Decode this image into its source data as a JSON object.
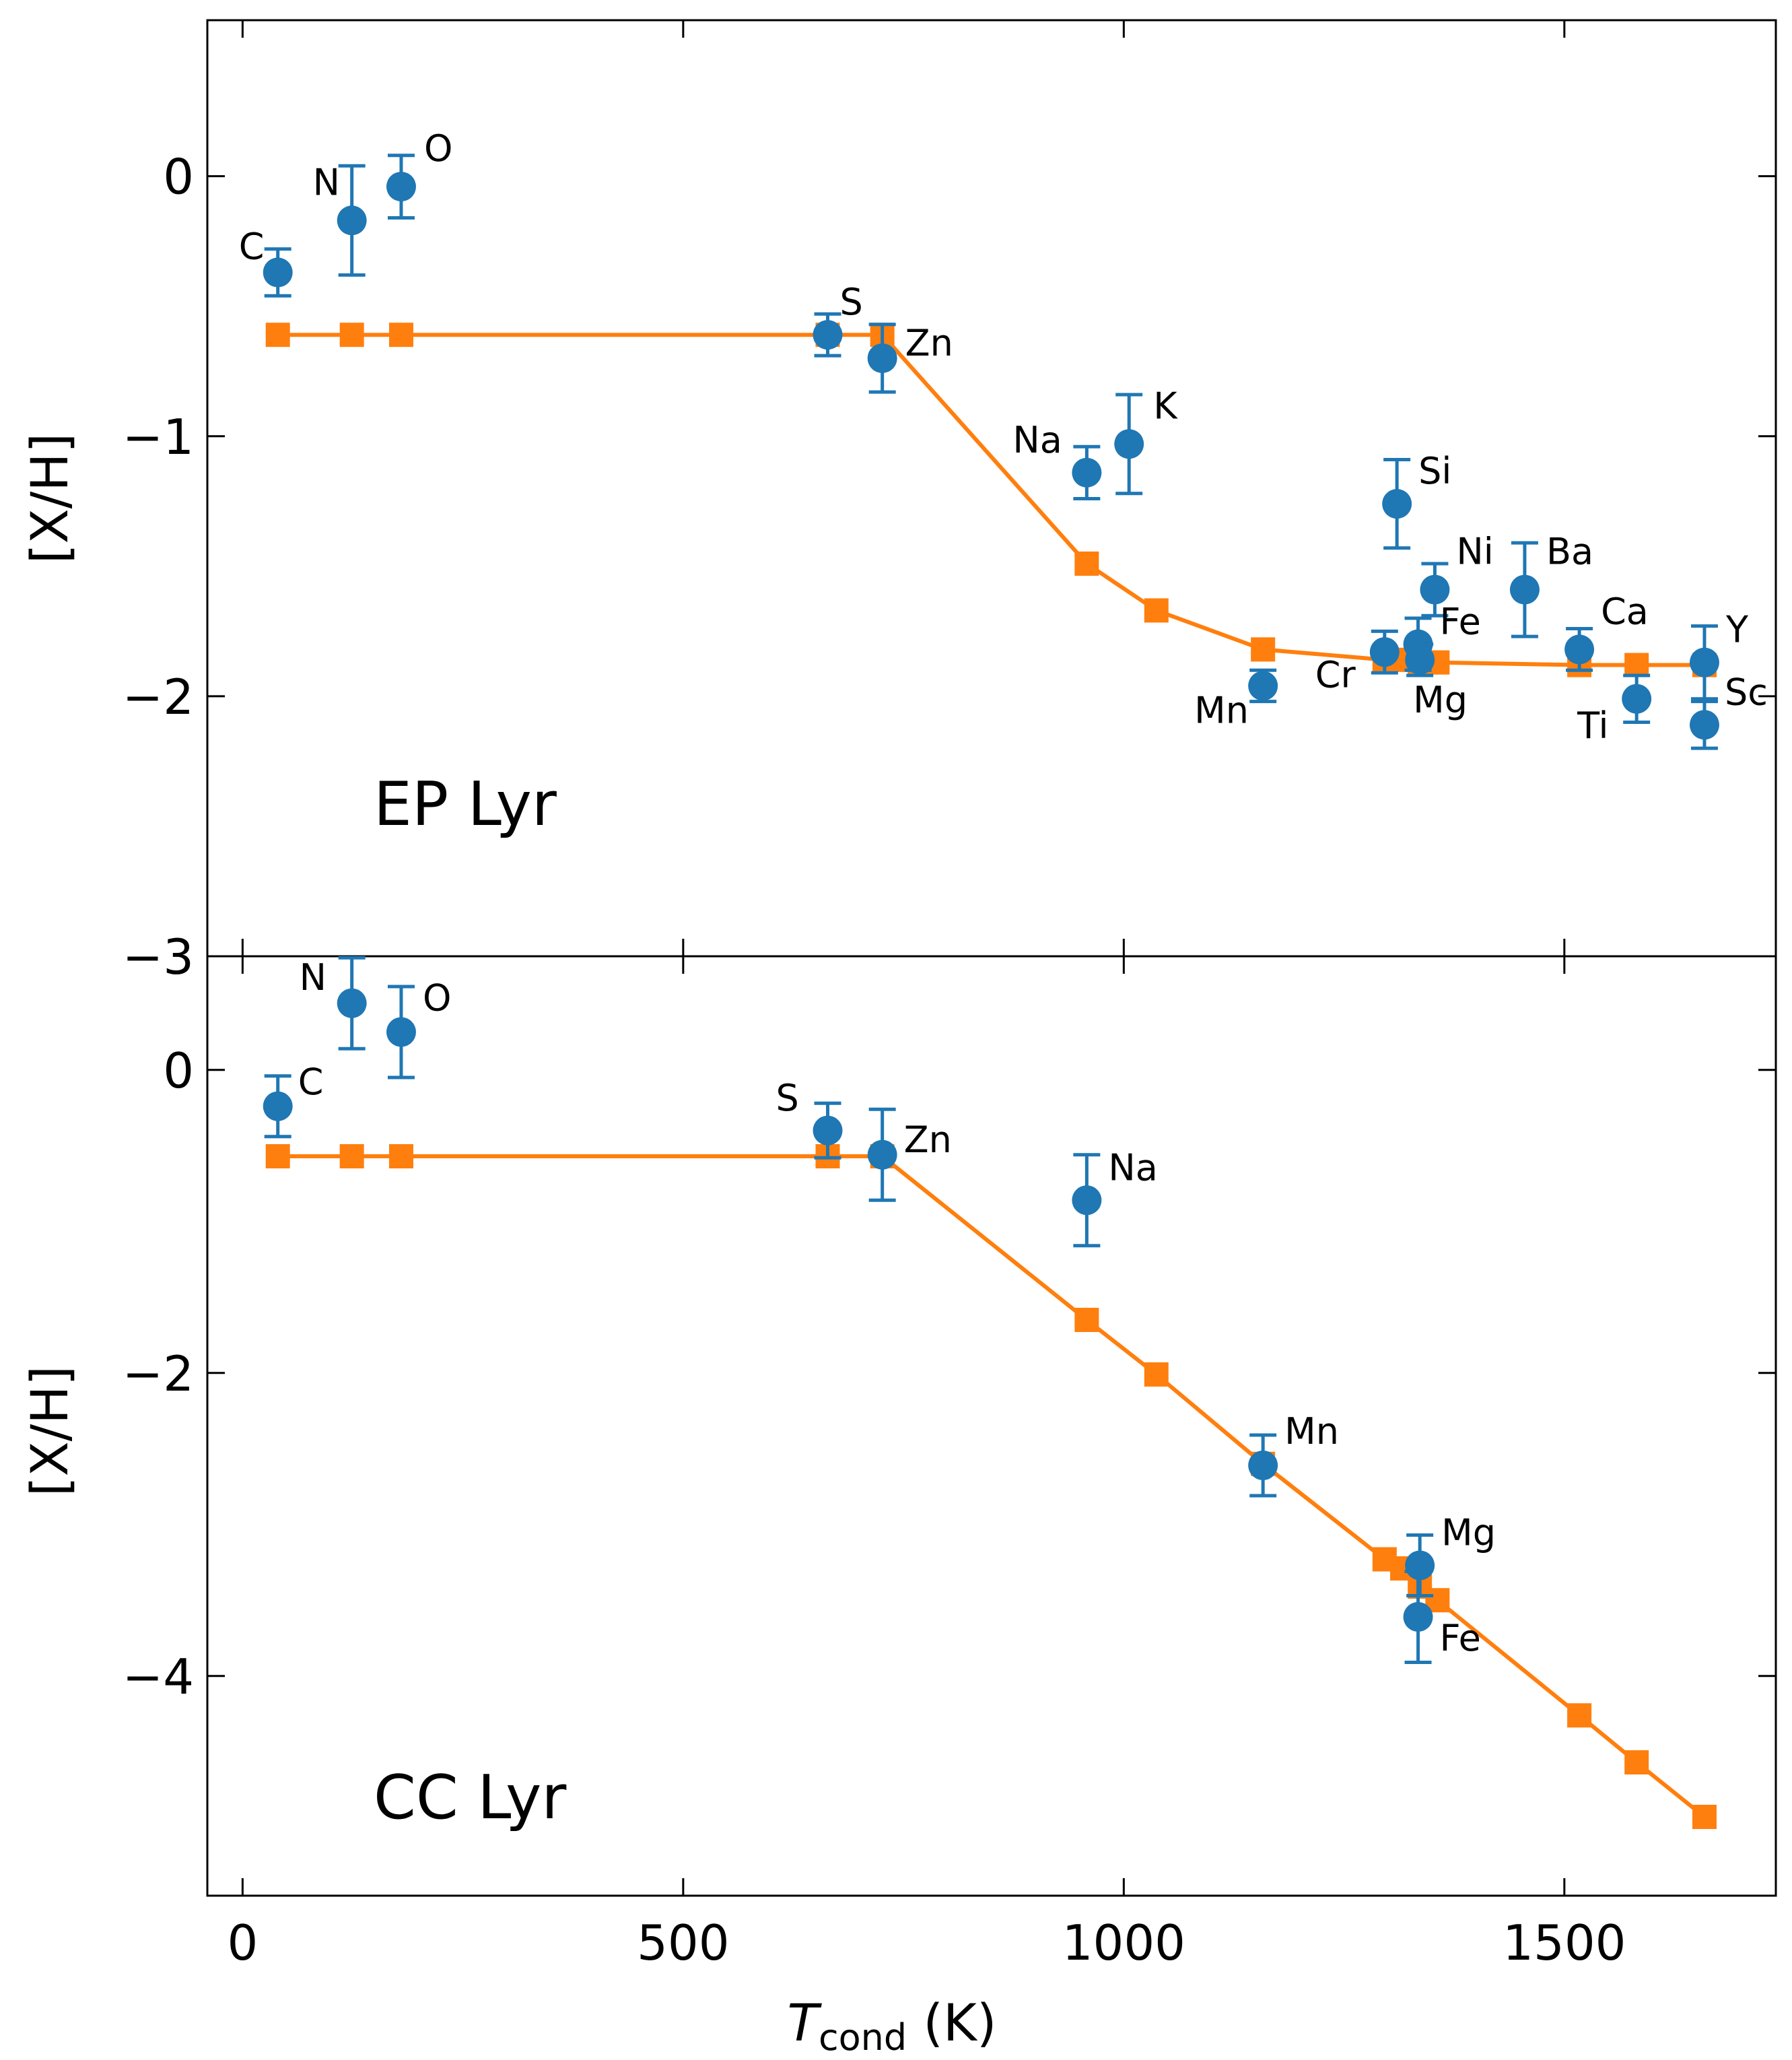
{
  "figure": {
    "xlabel_main": "T",
    "xlabel_sub": "cond",
    "xlabel_unit": " (K)"
  },
  "colors": {
    "observed": "#1f77b4",
    "model": "#ff7f0e",
    "axes": "#000000"
  },
  "chart_data": [
    {
      "type": "scatter",
      "title": "EP Lyr",
      "xlabel": "T_cond (K)",
      "ylabel": "[X/H]",
      "xlim": [
        -40,
        1740
      ],
      "ylim": [
        -3.0,
        0.6
      ],
      "xticks": [
        0,
        500,
        1000,
        1500
      ],
      "yticks": [
        0,
        -1,
        -2,
        -3
      ],
      "ytick_labels": [
        "0",
        "−1",
        "−2",
        "−3"
      ],
      "model": {
        "x": [
          40,
          124,
          180,
          664,
          726,
          958,
          1037,
          1158,
          1296,
          1316,
          1336,
          1356,
          1517,
          1582,
          1659
        ],
        "y": [
          -0.61,
          -0.61,
          -0.61,
          -0.61,
          -0.61,
          -1.49,
          -1.67,
          -1.82,
          -1.86,
          -1.86,
          -1.87,
          -1.87,
          -1.88,
          -1.88,
          -1.88
        ]
      },
      "observed": [
        {
          "el": "C",
          "x": 40,
          "y": -0.37,
          "err": 0.09
        },
        {
          "el": "N",
          "x": 124,
          "y": -0.17,
          "err": 0.21
        },
        {
          "el": "O",
          "x": 180,
          "y": -0.04,
          "err": 0.12
        },
        {
          "el": "S",
          "x": 664,
          "y": -0.61,
          "err": 0.08
        },
        {
          "el": "Zn",
          "x": 726,
          "y": -0.7,
          "err": 0.13
        },
        {
          "el": "Na",
          "x": 958,
          "y": -1.14,
          "err": 0.1
        },
        {
          "el": "K",
          "x": 1006,
          "y": -1.03,
          "err": 0.19
        },
        {
          "el": "Mn",
          "x": 1158,
          "y": -1.96,
          "err": 0.06
        },
        {
          "el": "Si",
          "x": 1310,
          "y": -1.26,
          "err": 0.17
        },
        {
          "el": "Ni",
          "x": 1353,
          "y": -1.59,
          "err": 0.1
        },
        {
          "el": "Ba",
          "x": 1455,
          "y": -1.59,
          "err": 0.18
        },
        {
          "el": "Cr",
          "x": 1296,
          "y": -1.83,
          "err": 0.08
        },
        {
          "el": "Fe",
          "x": 1334,
          "y": -1.8,
          "err": 0.1
        },
        {
          "el": "Mg",
          "x": 1336,
          "y": -1.86,
          "err": 0.06
        },
        {
          "el": "Ca",
          "x": 1517,
          "y": -1.82,
          "err": 0.08
        },
        {
          "el": "Ti",
          "x": 1582,
          "y": -2.01,
          "err": 0.09
        },
        {
          "el": "Y",
          "x": 1659,
          "y": -1.87,
          "err": 0.14
        },
        {
          "el": "Sc",
          "x": 1659,
          "y": -2.11,
          "err": 0.09
        }
      ]
    },
    {
      "type": "scatter",
      "title": "CC Lyr",
      "xlabel": "T_cond (K)",
      "ylabel": "[X/H]",
      "xlim": [
        -40,
        1740
      ],
      "ylim": [
        -5.45,
        0.75
      ],
      "xticks": [
        0,
        500,
        1000,
        1500
      ],
      "yticks": [
        0,
        -2,
        -4
      ],
      "ytick_labels": [
        "0",
        "−2",
        "−4"
      ],
      "model": {
        "x": [
          40,
          124,
          180,
          664,
          726,
          958,
          1037,
          1158,
          1296,
          1316,
          1336,
          1356,
          1517,
          1582,
          1659
        ],
        "y": [
          -0.57,
          -0.57,
          -0.57,
          -0.57,
          -0.57,
          -1.65,
          -2.01,
          -2.6,
          -3.23,
          -3.29,
          -3.41,
          -3.5,
          -4.26,
          -4.57,
          -4.93
        ]
      },
      "observed": [
        {
          "el": "C",
          "x": 40,
          "y": -0.24,
          "err": 0.2
        },
        {
          "el": "N",
          "x": 124,
          "y": 0.44,
          "err": 0.3
        },
        {
          "el": "O",
          "x": 180,
          "y": 0.25,
          "err": 0.3
        },
        {
          "el": "S",
          "x": 664,
          "y": -0.4,
          "err": 0.18
        },
        {
          "el": "Zn",
          "x": 726,
          "y": -0.56,
          "err": 0.3
        },
        {
          "el": "Na",
          "x": 958,
          "y": -0.86,
          "err": 0.3
        },
        {
          "el": "Mn",
          "x": 1158,
          "y": -2.61,
          "err": 0.2
        },
        {
          "el": "Mg",
          "x": 1336,
          "y": -3.27,
          "err": 0.2
        },
        {
          "el": "Fe",
          "x": 1334,
          "y": -3.61,
          "err": 0.3
        }
      ]
    }
  ]
}
